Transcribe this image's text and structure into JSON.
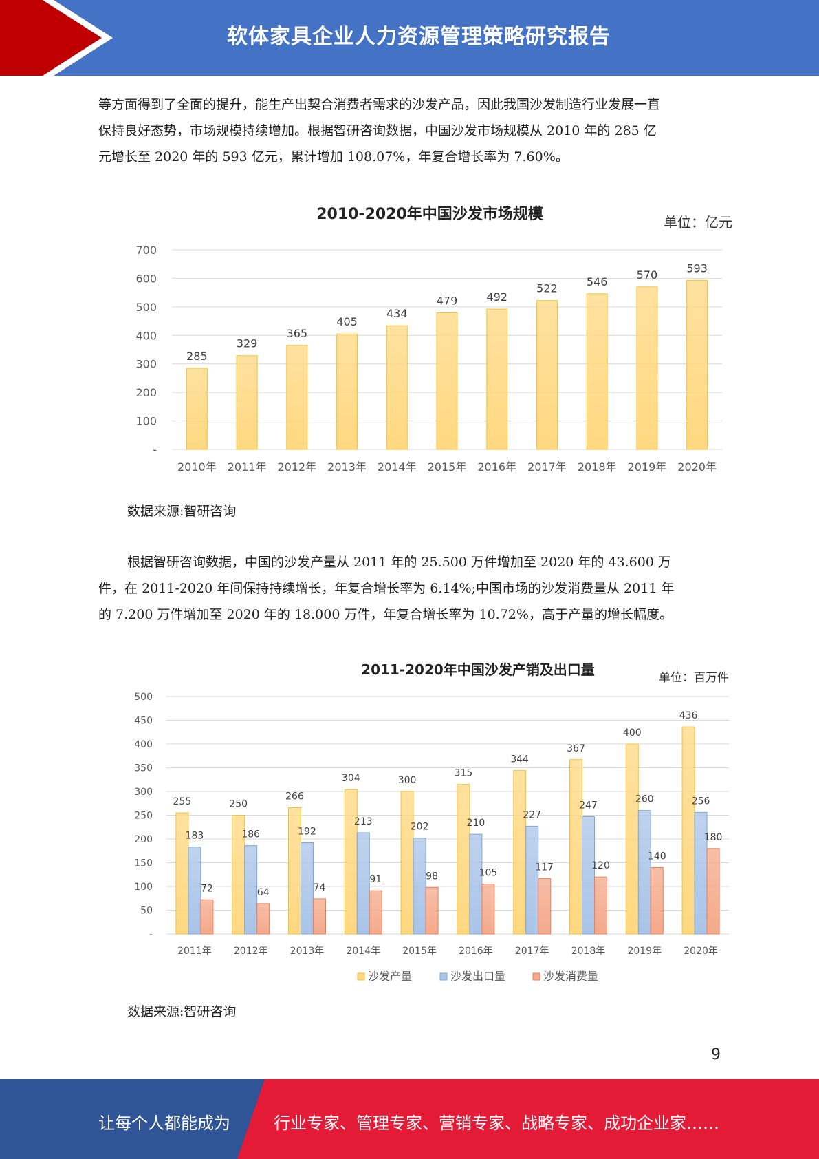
{
  "header": {
    "title": "软体家具企业人力资源管理策略研究报告",
    "colors": {
      "band": "#4472c4",
      "arrow": "#c00000"
    }
  },
  "paragraph1": {
    "lines": [
      "等方面得到了全面的提升，能生产出契合消费者需求的沙发产品，因此我国沙发制造行业发展一直",
      "保持良好态势，市场规模持续增加。根据智研咨询数据，中国沙发市场规模从 2010 年的 285 亿",
      "元增长至 2020 年的 593 亿元，累计增加 108.07%，年复合增长率为 7.60%。"
    ]
  },
  "chart1": {
    "unit_label": "单位：亿元",
    "source": "数据来源:智研咨询"
  },
  "paragraph2": {
    "lines": [
      "根据智研咨询数据，中国的沙发产量从 2011 年的 25.500 万件增加至 2020 年的 43.600 万",
      "件，在 2011-2020 年间保持持续增长，年复合增长率为 6.14%;中国市场的沙发消费量从 2011 年",
      "的 7.200 万件增加至 2020 年的 18.000 万件，年复合增长率为 10.72%，高于产量的增长幅度。"
    ]
  },
  "chart2": {
    "unit_label": "单位：百万件",
    "source": "数据来源:智研咨询"
  },
  "chart_data": [
    {
      "type": "bar",
      "title": "2010-2020年中国沙发市场规模",
      "categories": [
        "2010年",
        "2011年",
        "2012年",
        "2013年",
        "2014年",
        "2015年",
        "2016年",
        "2017年",
        "2018年",
        "2019年",
        "2020年"
      ],
      "values": [
        285,
        329,
        365,
        405,
        434,
        479,
        492,
        522,
        546,
        570,
        593
      ],
      "ylim": [
        0,
        700
      ],
      "yticks": [
        "-",
        "100",
        "200",
        "300",
        "400",
        "500",
        "600",
        "700"
      ],
      "grid": true,
      "color": "#ffd880"
    },
    {
      "type": "bar",
      "title": "2011-2020年中国沙发产销及出口量",
      "categories": [
        "2011年",
        "2012年",
        "2013年",
        "2014年",
        "2015年",
        "2016年",
        "2017年",
        "2018年",
        "2019年",
        "2020年"
      ],
      "series": [
        {
          "name": "沙发产量",
          "values": [
            255,
            250,
            266,
            304,
            300,
            315,
            344,
            367,
            400,
            436
          ],
          "color": "#ffd880"
        },
        {
          "name": "沙发出口量",
          "values": [
            183,
            186,
            192,
            213,
            202,
            210,
            227,
            247,
            260,
            256
          ],
          "color": "#a9c4e8"
        },
        {
          "name": "沙发消费量",
          "values": [
            72,
            64,
            74,
            91,
            98,
            105,
            117,
            120,
            140,
            180
          ],
          "color": "#f4a98a"
        }
      ],
      "ylim": [
        0,
        500
      ],
      "yticks": [
        "-",
        "50",
        "100",
        "150",
        "200",
        "250",
        "300",
        "350",
        "400",
        "450",
        "500"
      ],
      "grid": true,
      "legend": "bottom"
    }
  ],
  "page_number": "9",
  "footer": {
    "left_text": "让每个人都能成为",
    "right_text": "行业专家、管理专家、营销专家、战略专家、成功企业家……",
    "colors": {
      "left": "#2f5597",
      "right": "#e31b37"
    }
  }
}
